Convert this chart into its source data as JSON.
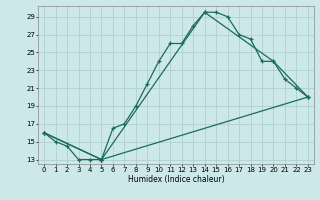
{
  "title": "",
  "xlabel": "Humidex (Indice chaleur)",
  "ylabel": "",
  "bg_color": "#cce8e8",
  "grid_color": "#aacccc",
  "line_color": "#1a6b5a",
  "line1_x": [
    0,
    1,
    2,
    3,
    4,
    5,
    6,
    7,
    8,
    9,
    10,
    11,
    12,
    13,
    14,
    15,
    16,
    17,
    18,
    19,
    20,
    21,
    22,
    23
  ],
  "line1_y": [
    16,
    15,
    14.5,
    13,
    13,
    13,
    16.5,
    17,
    19,
    21.5,
    24,
    26,
    26,
    28,
    29.5,
    29.5,
    29,
    27,
    26.5,
    24,
    24,
    22,
    21,
    20
  ],
  "line2_x": [
    0,
    5,
    14,
    20,
    23
  ],
  "line2_y": [
    16,
    13,
    29.5,
    24,
    20
  ],
  "line3_x": [
    0,
    5,
    23
  ],
  "line3_y": [
    16,
    13,
    20
  ],
  "ylim": [
    12.5,
    30.2
  ],
  "xlim": [
    -0.5,
    23.5
  ],
  "yticks": [
    13,
    15,
    17,
    19,
    21,
    23,
    25,
    27,
    29
  ],
  "xticks": [
    0,
    1,
    2,
    3,
    4,
    5,
    6,
    7,
    8,
    9,
    10,
    11,
    12,
    13,
    14,
    15,
    16,
    17,
    18,
    19,
    20,
    21,
    22,
    23
  ]
}
